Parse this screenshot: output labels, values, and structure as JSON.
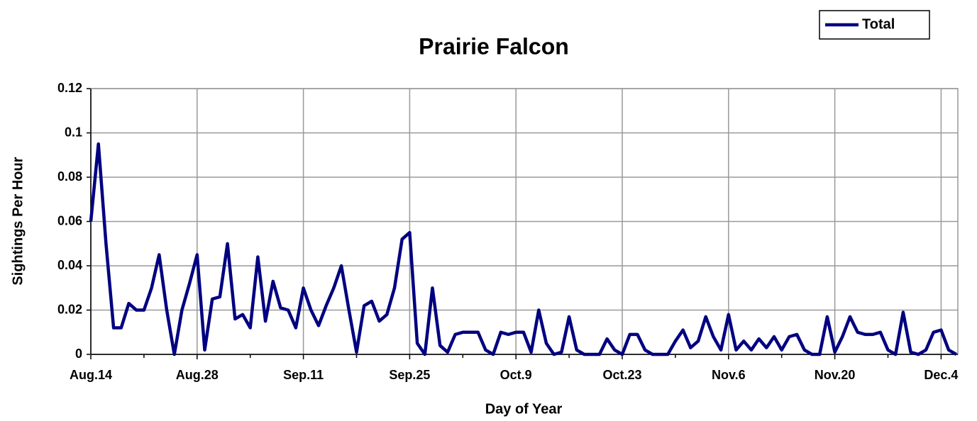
{
  "chart_data": {
    "type": "line",
    "title": "Prairie Falcon",
    "x_label": "Day of Year",
    "y_label": "Sightings Per Hour",
    "categories": [
      "Aug.14",
      null,
      null,
      null,
      null,
      null,
      null,
      null,
      null,
      null,
      null,
      null,
      null,
      null,
      "Aug.28",
      null,
      null,
      null,
      null,
      null,
      null,
      null,
      null,
      null,
      null,
      null,
      null,
      null,
      "Sep.11",
      null,
      null,
      null,
      null,
      null,
      null,
      null,
      null,
      null,
      null,
      null,
      null,
      null,
      "Sep.25",
      null,
      null,
      null,
      null,
      null,
      null,
      null,
      null,
      null,
      null,
      null,
      null,
      null,
      "Oct.9",
      null,
      null,
      null,
      null,
      null,
      null,
      null,
      null,
      null,
      null,
      null,
      null,
      null,
      "Oct.23",
      null,
      null,
      null,
      null,
      null,
      null,
      null,
      null,
      null,
      null,
      null,
      null,
      null,
      "Nov.6",
      null,
      null,
      null,
      null,
      null,
      null,
      null,
      null,
      null,
      null,
      null,
      null,
      null,
      "Nov.20",
      null,
      null,
      null,
      null,
      null,
      null,
      null,
      null,
      null,
      null,
      null,
      null,
      null,
      "Dec.4",
      null,
      null
    ],
    "series": [
      {
        "name": "Total",
        "color": "#000080",
        "values": [
          0.06,
          0.095,
          0.05,
          0.012,
          0.012,
          0.023,
          0.02,
          0.02,
          0.03,
          0.045,
          0.02,
          0,
          0.02,
          0.032,
          0.045,
          0.002,
          0.025,
          0.026,
          0.05,
          0.016,
          0.018,
          0.012,
          0.044,
          0.015,
          0.033,
          0.021,
          0.02,
          0.012,
          0.03,
          0.02,
          0.013,
          0.022,
          0.03,
          0.04,
          0.02,
          0.001,
          0.022,
          0.024,
          0.015,
          0.018,
          0.03,
          0.052,
          0.055,
          0.005,
          0,
          0.03,
          0.004,
          0.001,
          0.009,
          0.01,
          0.01,
          0.01,
          0.002,
          0,
          0.01,
          0.009,
          0.01,
          0.01,
          0.001,
          0.02,
          0.005,
          0,
          0.001,
          0.017,
          0.002,
          0,
          0,
          0,
          0.007,
          0.002,
          0,
          0.009,
          0.009,
          0.002,
          0,
          0,
          0,
          0.006,
          0.011,
          0.003,
          0.006,
          0.017,
          0.008,
          0.002,
          0.018,
          0.002,
          0.006,
          0.002,
          0.007,
          0.003,
          0.008,
          0.002,
          0.008,
          0.009,
          0.002,
          0,
          0,
          0.017,
          0.001,
          0.008,
          0.017,
          0.01,
          0.009,
          0.009,
          0.01,
          0.002,
          0,
          0.019,
          0.001,
          0,
          0.002,
          0.01,
          0.011,
          0.002,
          0
        ]
      }
    ],
    "ylim": [
      0,
      0.12
    ],
    "yticks": [
      0,
      0.02,
      0.04,
      0.06,
      0.08,
      0.1,
      0.12
    ],
    "grid": true,
    "legend": "upper right"
  }
}
